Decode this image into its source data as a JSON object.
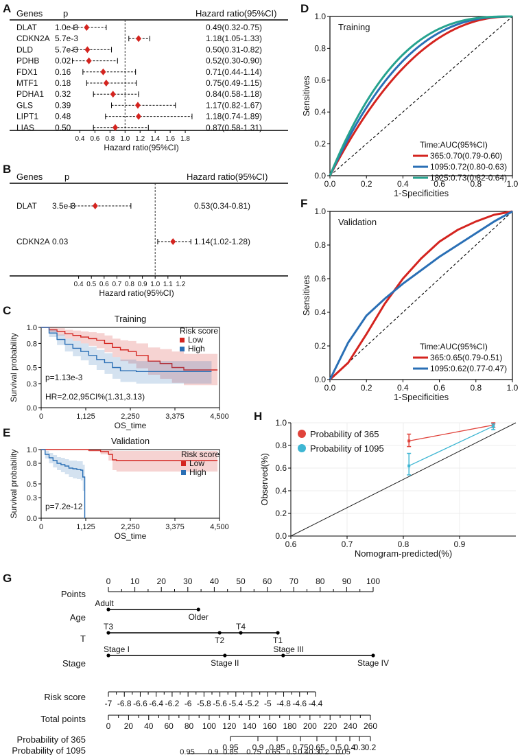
{
  "panels": {
    "A": "A",
    "B": "B",
    "C": "C",
    "D": "D",
    "E": "E",
    "F": "F",
    "G": "G",
    "H": "H"
  },
  "chart_data": [
    {
      "id": "A",
      "type": "forest",
      "header": {
        "genes": "Genes",
        "p": "p",
        "hr": "Hazard ratio(95%CI)"
      },
      "xlabel": "Hazard ratio(95%CI)",
      "xticks": [
        0.4,
        0.6,
        0.8,
        1.0,
        1.2,
        1.4,
        1.6,
        1.8
      ],
      "xtick_labels": [
        "0.4",
        "0.6",
        "0.8",
        "1.0",
        "1.2",
        "1.4",
        "1.6",
        "1.8"
      ],
      "xlim": [
        0.25,
        2.0
      ],
      "ref": 1.0,
      "rows": [
        {
          "gene": "DLAT",
          "p": "1.0e-3",
          "hr_text": "0.49(0.32-0.75)",
          "hr": 0.49,
          "lo": 0.32,
          "hi": 0.75
        },
        {
          "gene": "CDKN2A",
          "p": "5.7e-3",
          "hr_text": "1.18(1.05-1.33)",
          "hr": 1.18,
          "lo": 1.05,
          "hi": 1.33
        },
        {
          "gene": "DLD",
          "p": "5.7e-3",
          "hr_text": "0.50(0.31-0.82)",
          "hr": 0.5,
          "lo": 0.31,
          "hi": 0.82
        },
        {
          "gene": "PDHB",
          "p": "0.02",
          "hr_text": "0.52(0.30-0.90)",
          "hr": 0.52,
          "lo": 0.3,
          "hi": 0.9
        },
        {
          "gene": "FDX1",
          "p": "0.16",
          "hr_text": "0.71(0.44-1.14)",
          "hr": 0.71,
          "lo": 0.44,
          "hi": 1.14
        },
        {
          "gene": "MTF1",
          "p": "0.18",
          "hr_text": "0.75(0.49-1.15)",
          "hr": 0.75,
          "lo": 0.49,
          "hi": 1.15
        },
        {
          "gene": "PDHA1",
          "p": "0.32",
          "hr_text": "0.84(0.58-1.18)",
          "hr": 0.84,
          "lo": 0.58,
          "hi": 1.18
        },
        {
          "gene": "GLS",
          "p": "0.39",
          "hr_text": "1.17(0.82-1.67)",
          "hr": 1.17,
          "lo": 0.82,
          "hi": 1.67
        },
        {
          "gene": "LIPT1",
          "p": "0.48",
          "hr_text": "1.18(0.74-1.89)",
          "hr": 1.18,
          "lo": 0.74,
          "hi": 1.89
        },
        {
          "gene": "LIAS",
          "p": "0.50",
          "hr_text": "0.87(0.58-1.31)",
          "hr": 0.87,
          "lo": 0.58,
          "hi": 1.31
        }
      ]
    },
    {
      "id": "B",
      "type": "forest",
      "header": {
        "genes": "Genes",
        "p": "p",
        "hr": "Hazard ratio(95%CI)"
      },
      "xlabel": "Hazard ratio(95%CI)",
      "xticks": [
        0.4,
        0.5,
        0.6,
        0.7,
        0.8,
        0.9,
        1.0,
        1.1,
        1.2
      ],
      "xtick_labels": [
        "0.4",
        "0.5",
        "0.6",
        "0.7",
        "0.8",
        "0.9",
        "1.0",
        "1.1",
        "1.2"
      ],
      "xlim": [
        0.3,
        1.3
      ],
      "ref": 1.0,
      "rows": [
        {
          "gene": "DLAT",
          "p": "3.5e-3",
          "hr_text": "0.53(0.34-0.81)",
          "hr": 0.53,
          "lo": 0.34,
          "hi": 0.81
        },
        {
          "gene": "CDKN2A",
          "p": "0.03",
          "hr_text": "1.14(1.02-1.28)",
          "hr": 1.14,
          "lo": 1.02,
          "hi": 1.28
        }
      ]
    },
    {
      "id": "C",
      "type": "line",
      "title": "Training",
      "xlabel": "OS_time",
      "ylabel": "Survival probability",
      "xlim": [
        0,
        4500
      ],
      "ylim": [
        0,
        1.0
      ],
      "xticks": [
        0,
        1125,
        2250,
        3375,
        4500
      ],
      "xtick_labels": [
        "0",
        "1,125",
        "2,250",
        "3,375",
        "4,500"
      ],
      "yticks": [
        0.0,
        0.3,
        0.5,
        0.8,
        1.0
      ],
      "ytick_labels": [
        "0.0",
        "0.3",
        "0.5",
        "0.8",
        "1.0"
      ],
      "legend_title": "Risk score",
      "annotations": [
        "p=1.13e-3",
        "HR=2.02,95CI%(1.31,3.13)"
      ],
      "series": [
        {
          "name": "Low",
          "color": "#d4241f",
          "x": [
            0,
            200,
            400,
            600,
            800,
            1000,
            1200,
            1400,
            1600,
            1800,
            2000,
            2200,
            2400,
            2700,
            3000,
            3300,
            3600,
            4000,
            4450
          ],
          "y": [
            1.0,
            0.97,
            0.95,
            0.92,
            0.9,
            0.88,
            0.86,
            0.84,
            0.8,
            0.75,
            0.72,
            0.7,
            0.65,
            0.58,
            0.55,
            0.5,
            0.47,
            0.47,
            0.47
          ],
          "lo": [
            1.0,
            0.94,
            0.9,
            0.86,
            0.83,
            0.8,
            0.77,
            0.74,
            0.69,
            0.63,
            0.58,
            0.55,
            0.49,
            0.41,
            0.36,
            0.31,
            0.28,
            0.28,
            0.28
          ],
          "hi": [
            1.0,
            1.0,
            0.99,
            0.97,
            0.96,
            0.95,
            0.94,
            0.93,
            0.9,
            0.86,
            0.84,
            0.83,
            0.8,
            0.75,
            0.73,
            0.7,
            0.67,
            0.67,
            0.67
          ]
        },
        {
          "name": "High",
          "color": "#2a6fb5",
          "x": [
            0,
            200,
            400,
            600,
            800,
            1000,
            1200,
            1400,
            1600,
            1800,
            2000,
            2400,
            2800,
            3200,
            3600,
            4000,
            4300
          ],
          "y": [
            1.0,
            0.93,
            0.85,
            0.79,
            0.74,
            0.7,
            0.65,
            0.6,
            0.56,
            0.5,
            0.46,
            0.45,
            0.45,
            0.45,
            0.45,
            0.45,
            0.45
          ],
          "lo": [
            1.0,
            0.88,
            0.78,
            0.7,
            0.64,
            0.59,
            0.53,
            0.47,
            0.42,
            0.36,
            0.32,
            0.3,
            0.3,
            0.3,
            0.3,
            0.3,
            0.3
          ],
          "hi": [
            1.0,
            0.97,
            0.91,
            0.86,
            0.83,
            0.8,
            0.76,
            0.72,
            0.68,
            0.63,
            0.6,
            0.58,
            0.58,
            0.58,
            0.58,
            0.58,
            0.58
          ]
        }
      ]
    },
    {
      "id": "E",
      "type": "line",
      "title": "Validation",
      "xlabel": "OS_time",
      "ylabel": "Survival probability",
      "xlim": [
        0,
        4500
      ],
      "ylim": [
        0,
        1.0
      ],
      "xticks": [
        0,
        1125,
        2250,
        3375,
        4500
      ],
      "xtick_labels": [
        "0",
        "1,125",
        "2,250",
        "3,375",
        "4,500"
      ],
      "yticks": [
        0.0,
        0.3,
        0.5,
        0.8,
        1.0
      ],
      "ytick_labels": [
        "0.0",
        "0.3",
        "0.5",
        "0.8",
        "1.0"
      ],
      "legend_title": "Risk score",
      "annotations": [
        "p=7.2e-12"
      ],
      "series": [
        {
          "name": "Low",
          "color": "#d4241f",
          "x": [
            0,
            500,
            1000,
            1200,
            1500,
            1700,
            1800,
            1900,
            2500,
            3500,
            4450
          ],
          "y": [
            1.0,
            1.0,
            1.0,
            0.99,
            0.97,
            0.93,
            0.85,
            0.84,
            0.84,
            0.84,
            0.84
          ],
          "lo": [
            1.0,
            1.0,
            1.0,
            0.97,
            0.93,
            0.84,
            0.7,
            0.68,
            0.68,
            0.68,
            0.68
          ],
          "hi": [
            1.0,
            1.0,
            1.0,
            1.0,
            1.0,
            1.0,
            0.98,
            0.98,
            0.98,
            0.98,
            0.98
          ]
        },
        {
          "name": "High",
          "color": "#2a6fb5",
          "x": [
            0,
            100,
            200,
            300,
            400,
            500,
            600,
            700,
            800,
            900,
            1000,
            1050,
            1100
          ],
          "y": [
            1.0,
            0.93,
            0.88,
            0.84,
            0.8,
            0.78,
            0.76,
            0.73,
            0.72,
            0.71,
            0.7,
            0.6,
            0.0
          ],
          "lo": [
            1.0,
            0.87,
            0.8,
            0.74,
            0.7,
            0.67,
            0.64,
            0.6,
            0.58,
            0.57,
            0.55,
            0.4,
            0.0
          ],
          "hi": [
            1.0,
            0.98,
            0.95,
            0.92,
            0.89,
            0.88,
            0.86,
            0.84,
            0.84,
            0.83,
            0.83,
            0.78,
            0.0
          ]
        }
      ]
    },
    {
      "id": "D",
      "type": "line",
      "title": "Training",
      "xlabel": "1-Specificities",
      "ylabel": "Sensitives",
      "xlim": [
        0,
        1.0
      ],
      "ylim": [
        0,
        1.0
      ],
      "ticks": [
        0,
        0.2,
        0.4,
        0.6,
        0.8,
        1.0
      ],
      "tick_labels": [
        "0.0",
        "0.2",
        "0.4",
        "0.6",
        "0.8",
        "1.0"
      ],
      "legend_title": "Time:AUC(95%CI)",
      "series": [
        {
          "name": "365:0.70(0.79-0.60)",
          "color": "#d4241f",
          "shape": 2.2
        },
        {
          "name": "1095:0.72(0.80-0.63)",
          "color": "#2a6fb5",
          "shape": 2.5
        },
        {
          "name": "1825:0.73(0.82-0.64)",
          "color": "#26a38f",
          "shape": 2.8
        }
      ]
    },
    {
      "id": "F",
      "type": "line",
      "title": "Validation",
      "xlabel": "1-Specificities",
      "ylabel": "Sensitives",
      "xlim": [
        0,
        1.0
      ],
      "ylim": [
        0,
        1.0
      ],
      "ticks": [
        0,
        0.2,
        0.4,
        0.6,
        0.8,
        1.0
      ],
      "tick_labels": [
        "0.0",
        "0.2",
        "0.4",
        "0.6",
        "0.8",
        "1.0"
      ],
      "legend_title": "Time:AUC(95%CI)",
      "series": [
        {
          "name": "365:0.65(0.79-0.51)",
          "color": "#d4241f",
          "x": [
            0,
            0.1,
            0.2,
            0.3,
            0.4,
            0.5,
            0.6,
            0.7,
            0.8,
            0.9,
            1.0
          ],
          "y": [
            0,
            0.1,
            0.27,
            0.45,
            0.6,
            0.72,
            0.82,
            0.89,
            0.94,
            0.98,
            1.0
          ]
        },
        {
          "name": "1095:0.62(0.77-0.47)",
          "color": "#2a6fb5",
          "x": [
            0,
            0.1,
            0.2,
            0.3,
            0.4,
            0.5,
            0.6,
            0.7,
            0.8,
            0.9,
            1.0
          ],
          "y": [
            0,
            0.22,
            0.38,
            0.48,
            0.57,
            0.65,
            0.73,
            0.8,
            0.87,
            0.94,
            1.0
          ]
        }
      ]
    },
    {
      "id": "H",
      "type": "line",
      "xlabel": "Nomogram-predicted(%)",
      "ylabel": "Observed(%)",
      "xlim": [
        0.6,
        1.0
      ],
      "ylim": [
        0,
        1.0
      ],
      "xticks": [
        0.6,
        0.7,
        0.8,
        0.9
      ],
      "xtick_labels": [
        "0.6",
        "0.7",
        "0.8",
        "0.9"
      ],
      "yticks": [
        0,
        0.2,
        0.4,
        0.6,
        0.8,
        1.0
      ],
      "ytick_labels": [
        "0.0",
        "0.2",
        "0.4",
        "0.6",
        "0.8",
        "1.0"
      ],
      "series": [
        {
          "name": "Probability of 365",
          "color": "#e0433b",
          "x": [
            0.81,
            0.96
          ],
          "y": [
            0.84,
            0.98
          ],
          "lo": [
            0.79,
            0.96
          ],
          "hi": [
            0.9,
            1.0
          ]
        },
        {
          "name": "Probability of 1095",
          "color": "#3eb6d3",
          "x": [
            0.81,
            0.96
          ],
          "y": [
            0.62,
            0.97
          ],
          "lo": [
            0.54,
            0.94
          ],
          "hi": [
            0.73,
            0.99
          ]
        }
      ]
    },
    {
      "id": "G",
      "type": "nomogram",
      "rows": [
        {
          "label": "Points",
          "ticks": [
            0,
            10,
            20,
            30,
            40,
            50,
            60,
            70,
            80,
            90,
            100
          ],
          "tick_labels": [
            "0",
            "10",
            "20",
            "30",
            "40",
            "50",
            "60",
            "70",
            "80",
            "90",
            "100"
          ]
        },
        {
          "label": "Age",
          "levels": [
            {
              "name": "Adult",
              "points": 0
            },
            {
              "name": "Older",
              "points": 34
            }
          ]
        },
        {
          "label": "T",
          "levels": [
            {
              "name": "T3",
              "points": 0
            },
            {
              "name": "T2",
              "points": 42
            },
            {
              "name": "T4",
              "points": 50
            },
            {
              "name": "T1",
              "points": 64
            }
          ]
        },
        {
          "label": "Stage",
          "levels": [
            {
              "name": "Stage I",
              "points": 0
            },
            {
              "name": "Stage II",
              "points": 44
            },
            {
              "name": "Stage III",
              "points": 66
            },
            {
              "name": "Stage IV",
              "points": 100
            }
          ]
        },
        {
          "label": "Risk score",
          "ticks": [
            -7,
            -6.8,
            -6.6,
            -6.4,
            -6.2,
            -6,
            -5.8,
            -5.6,
            -5.4,
            -5.2,
            -5,
            -4.8,
            -4.6,
            -4.4
          ],
          "tick_labels": [
            "-7",
            "-6.8",
            "-6.6",
            "-6.4",
            "-6.2",
            "-6",
            "-5.8",
            "-5.6",
            "-5.4",
            "-5.2",
            "-5",
            "-4.8",
            "-4.6",
            "-4.4"
          ]
        },
        {
          "label": "Total points",
          "ticks": [
            0,
            20,
            40,
            60,
            80,
            100,
            120,
            140,
            160,
            180,
            200,
            220,
            240,
            260
          ],
          "tick_labels": [
            "0",
            "20",
            "40",
            "60",
            "80",
            "100",
            "120",
            "140",
            "160",
            "180",
            "200",
            "220",
            "240",
            "260"
          ]
        },
        {
          "label": "Probability of 365",
          "ticks": [
            0.95,
            0.9,
            0.85,
            0.75,
            0.65,
            0.5,
            0.4,
            0.3,
            0.2
          ],
          "tick_labels": [
            "0.95",
            "0.9",
            "0.85",
            "0.75",
            "0.65",
            "0.5",
            "0.4",
            "0.3",
            "0.2"
          ]
        },
        {
          "label": "Probability of 1095",
          "ticks": [
            0.95,
            0.9,
            0.85,
            0.75,
            0.65,
            0.5,
            0.4,
            0.3,
            0.2,
            0.05
          ],
          "tick_labels": [
            "0.95",
            "0.9",
            "0.85",
            "0.75",
            "0.65",
            "0.5",
            "0.4",
            "0.3",
            "0.2",
            "0.05"
          ]
        }
      ]
    }
  ]
}
